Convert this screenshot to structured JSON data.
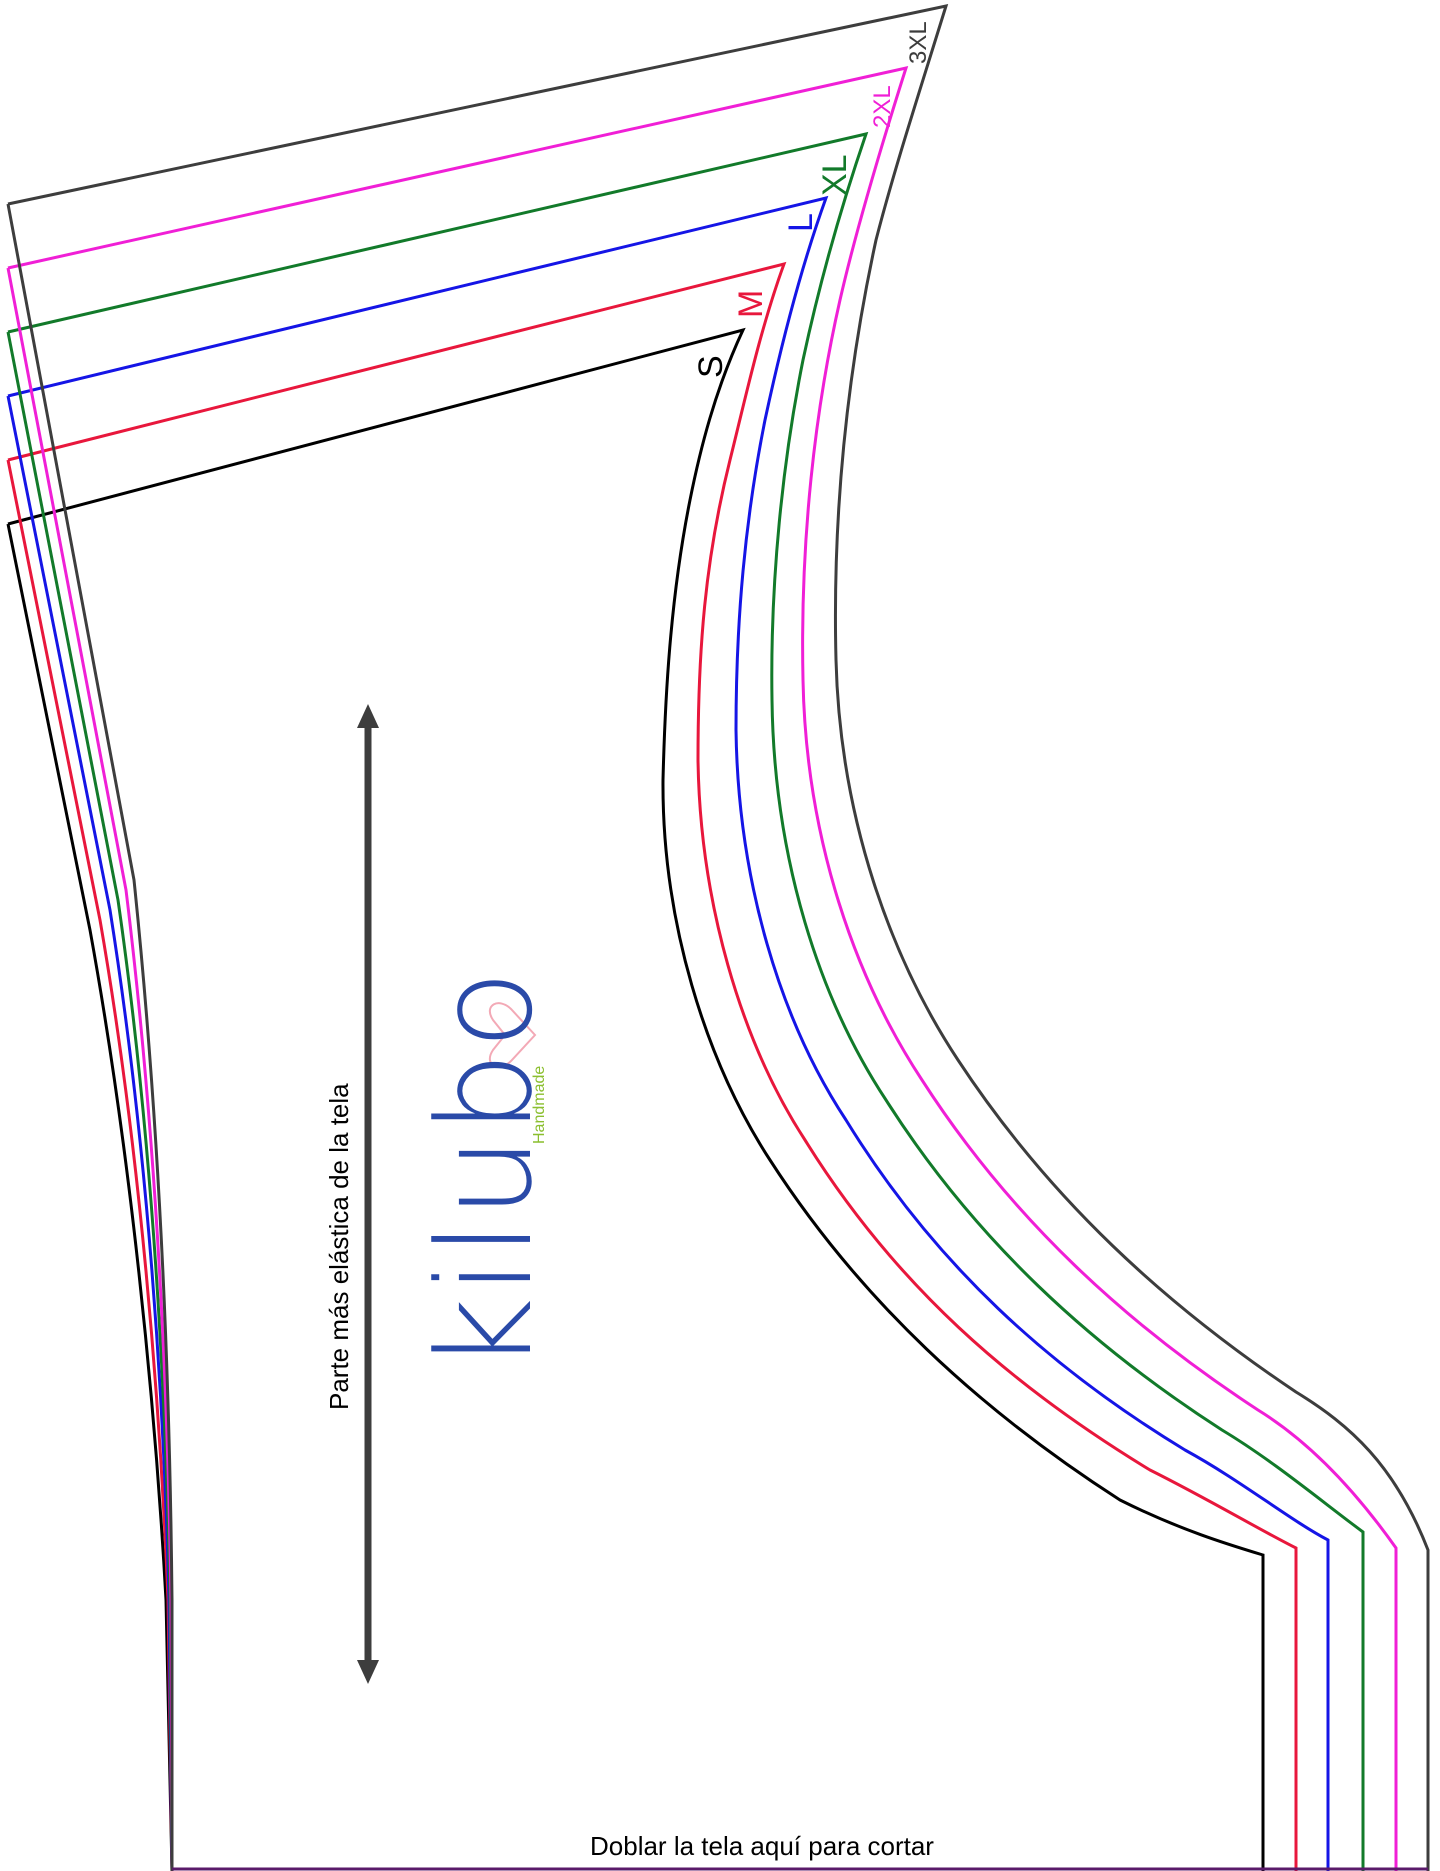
{
  "sizes": [
    {
      "label": "S",
      "color": "#000000"
    },
    {
      "label": "M",
      "color": "#e8173c"
    },
    {
      "label": "L",
      "color": "#1515e6"
    },
    {
      "label": "XL",
      "color": "#127a2a"
    },
    {
      "label": "2XL",
      "color": "#f01fd6"
    },
    {
      "label": "3XL",
      "color": "#3d3d3d"
    }
  ],
  "grainline_label": "Parte más elástica de la tela",
  "fold_label": "Doblar la tela aquí para cortar",
  "logo": {
    "name": "kilubo",
    "sub": "Handmade"
  },
  "colors": {
    "grainline": "#3d3d3d",
    "logo_blue": "#2a4aa8",
    "logo_green": "#8bbf2f",
    "logo_pink": "#f3a9b6"
  }
}
